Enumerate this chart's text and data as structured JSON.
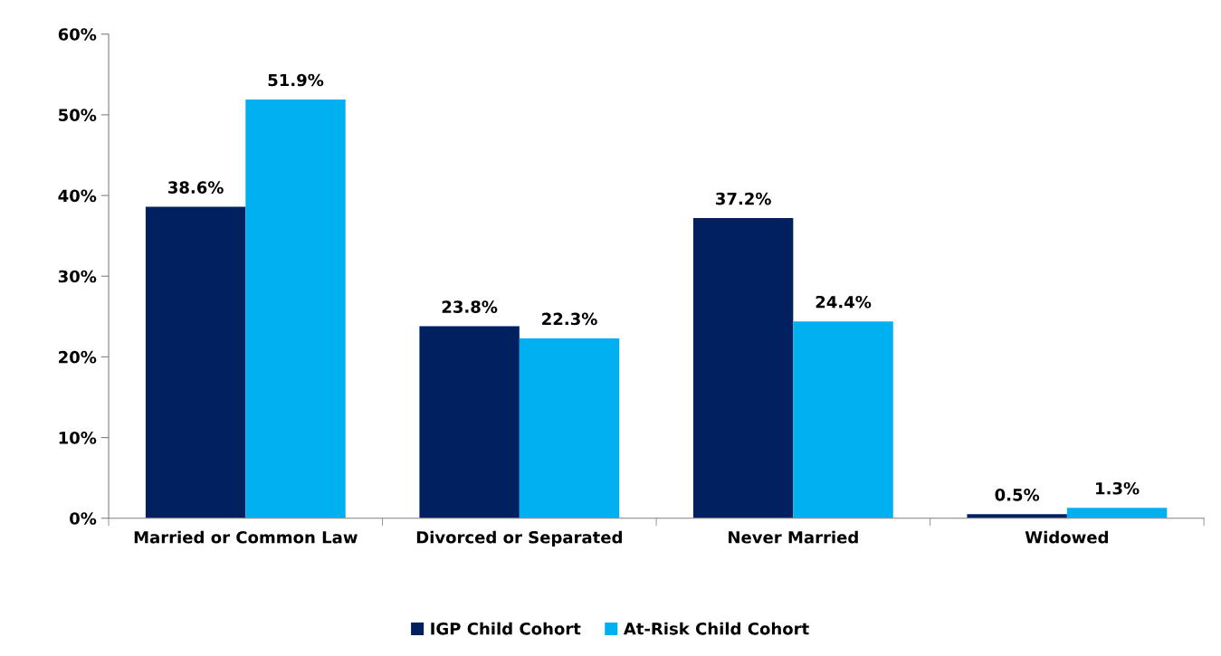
{
  "chart_data": {
    "type": "bar",
    "categories": [
      "Married or Common Law",
      "Divorced or Separated",
      "Never Married",
      "Widowed"
    ],
    "series": [
      {
        "name": "IGP Child Cohort",
        "color": "#002060",
        "values": [
          38.6,
          23.8,
          37.2,
          0.5
        ],
        "value_labels": [
          "38.6%",
          "23.8%",
          "37.2%",
          "0.5%"
        ]
      },
      {
        "name": "At-Risk Child Cohort",
        "color": "#00b0f0",
        "values": [
          51.9,
          22.3,
          24.4,
          1.3
        ],
        "value_labels": [
          "51.9%",
          "22.3%",
          "24.4%",
          "1.3%"
        ]
      }
    ],
    "ylim": [
      0,
      60
    ],
    "yticks": [
      {
        "value": 0,
        "label": "0%"
      },
      {
        "value": 10,
        "label": "10%"
      },
      {
        "value": 20,
        "label": "20%"
      },
      {
        "value": 30,
        "label": "30%"
      },
      {
        "value": 40,
        "label": "40%"
      },
      {
        "value": 50,
        "label": "50%"
      },
      {
        "value": 60,
        "label": "60%"
      }
    ],
    "grid": false,
    "legend": "bottom"
  }
}
